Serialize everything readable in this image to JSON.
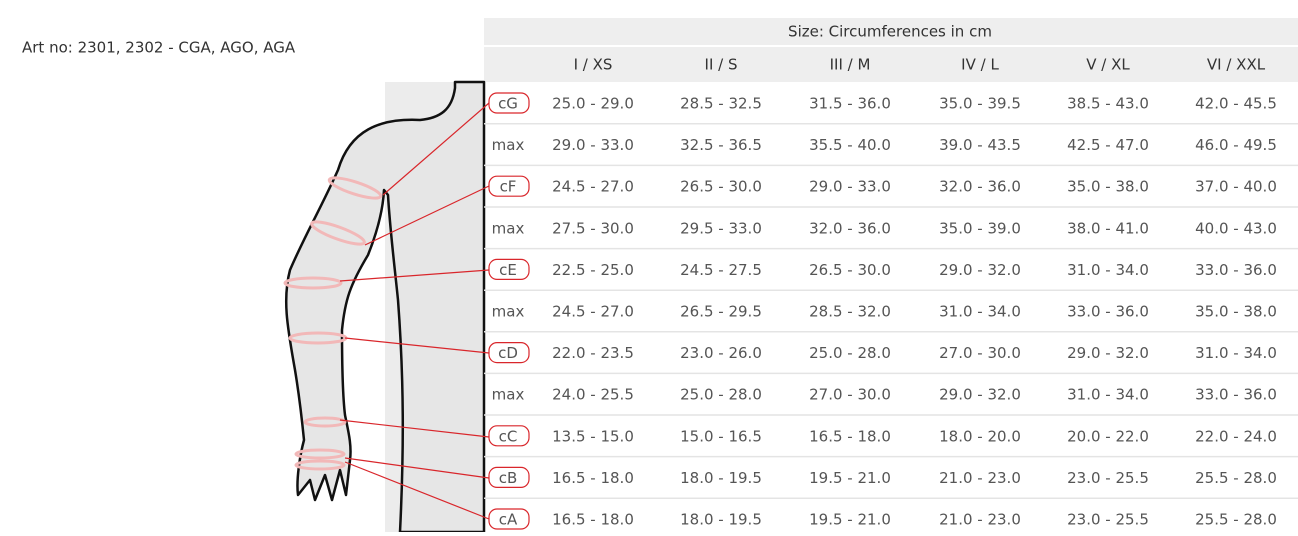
{
  "header": {
    "art_no": "Art no: 2301, 2302 - CGA, AGO, AGA"
  },
  "table": {
    "title": "Size: Circumferences in cm",
    "columns": [
      "I / XS",
      "II / S",
      "III / M",
      "IV / L",
      "V / XL",
      "VI / XXL"
    ],
    "rows": [
      {
        "label": "cG",
        "values": [
          "25.0 - 29.0",
          "28.5 - 32.5",
          "31.5 - 36.0",
          "35.0 - 39.5",
          "38.5 - 43.0",
          "42.0 - 45.5"
        ]
      },
      {
        "label": "max",
        "values": [
          "29.0 - 33.0",
          "32.5 - 36.5",
          "35.5 - 40.0",
          "39.0 - 43.5",
          "42.5 - 47.0",
          "46.0 - 49.5"
        ]
      },
      {
        "label": "cF",
        "values": [
          "24.5 - 27.0",
          "26.5 - 30.0",
          "29.0 - 33.0",
          "32.0 - 36.0",
          "35.0 - 38.0",
          "37.0 - 40.0"
        ]
      },
      {
        "label": "max",
        "values": [
          "27.5 - 30.0",
          "29.5 - 33.0",
          "32.0 - 36.0",
          "35.0 - 39.0",
          "38.0 - 41.0",
          "40.0 - 43.0"
        ]
      },
      {
        "label": "cE",
        "values": [
          "22.5 - 25.0",
          "24.5 - 27.5",
          "26.5 - 30.0",
          "29.0 - 32.0",
          "31.0 - 34.0",
          "33.0 - 36.0"
        ]
      },
      {
        "label": "max",
        "values": [
          "24.5 - 27.0",
          "26.5 - 29.5",
          "28.5 - 32.0",
          "31.0 - 34.0",
          "33.0 - 36.0",
          "35.0 - 38.0"
        ]
      },
      {
        "label": "cD",
        "values": [
          "22.0 - 23.5",
          "23.0 - 26.0",
          "25.0 - 28.0",
          "27.0 - 30.0",
          "29.0 - 32.0",
          "31.0 - 34.0"
        ]
      },
      {
        "label": "max",
        "values": [
          "24.0 - 25.5",
          "25.0 - 28.0",
          "27.0 - 30.0",
          "29.0 - 32.0",
          "31.0 - 34.0",
          "33.0 - 36.0"
        ]
      },
      {
        "label": "cC",
        "values": [
          "13.5 - 15.0",
          "15.0 - 16.5",
          "16.5 - 18.0",
          "18.0 - 20.0",
          "20.0 - 22.0",
          "22.0 - 24.0"
        ]
      },
      {
        "label": "cB",
        "values": [
          "16.5 - 18.0",
          "18.0 - 19.5",
          "19.5 - 21.0",
          "21.0 - 23.0",
          "23.0 - 25.5",
          "25.5 - 28.0"
        ]
      },
      {
        "label": "cA",
        "values": [
          "16.5 - 18.0",
          "18.0 - 19.5",
          "19.5 - 21.0",
          "21.0 - 23.0",
          "23.0 - 25.5",
          "25.5 - 28.0"
        ]
      }
    ]
  }
}
